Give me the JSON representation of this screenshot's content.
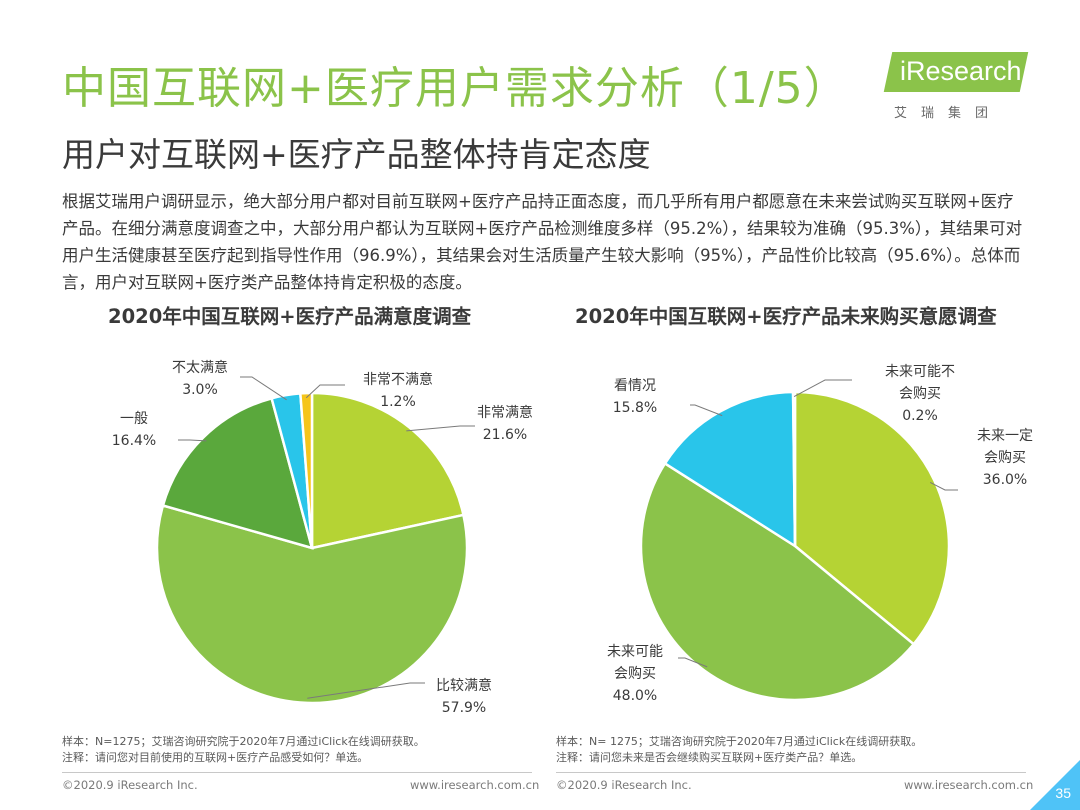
{
  "header": {
    "title": "中国互联网+医疗用户需求分析（1/5）",
    "subtitle": "用户对互联网+医疗产品整体持肯定态度",
    "logo_text": "iResearch",
    "logo_subtext": "艾瑞集团"
  },
  "description": "根据艾瑞用户调研显示，绝大部分用户都对目前互联网+医疗产品持正面态度，而几乎所有用户都愿意在未来尝试购买互联网+医疗产品。在细分满意度调查之中，大部分用户都认为互联网+医疗产品检测维度多样（95.2%），结果较为准确（95.3%），其结果可对用户生活健康甚至医疗起到指导性作用（96.9%），其结果会对生活质量产生较大影响（95%），产品性价比较高（95.6%）。总体而言，用户对互联网+医疗类产品整体持肯定积极的态度。",
  "chart_data": [
    {
      "type": "pie",
      "title": "2020年中国互联网+医疗产品满意度调查",
      "slices": [
        {
          "label": "非常满意",
          "value": 21.6,
          "display": "21.6%",
          "color": "#b5d334"
        },
        {
          "label": "比较满意",
          "value": 57.9,
          "display": "57.9%",
          "color": "#8bc34a"
        },
        {
          "label": "一般",
          "value": 16.4,
          "display": "16.4%",
          "color": "#5aa83c"
        },
        {
          "label": "不太满意",
          "value": 3.0,
          "display": "3.0%",
          "color": "#29c5ea"
        },
        {
          "label": "非常不满意",
          "value": 1.2,
          "display": "1.2%",
          "color": "#f5c51b"
        }
      ]
    },
    {
      "type": "pie",
      "title": "2020年中国互联网+医疗产品未来购买意愿调查",
      "slices": [
        {
          "label": "未来一定会购买",
          "value": 36.0,
          "display": "36.0%",
          "color": "#b5d334"
        },
        {
          "label": "未来可能会购买",
          "value": 48.0,
          "display": "48.0%",
          "color": "#8bc34a"
        },
        {
          "label": "看情况",
          "value": 15.8,
          "display": "15.8%",
          "color": "#29c5ea"
        },
        {
          "label": "未来可能不会购买",
          "value": 0.2,
          "display": "0.2%",
          "color": "#f5c51b"
        }
      ]
    }
  ],
  "notes": {
    "left": {
      "sample": "样本：N=1275；艾瑞咨询研究院于2020年7月通过iClick在线调研获取。",
      "remark": "注释：请问您对目前使用的互联网+医疗产品感受如何？单选。"
    },
    "right": {
      "sample": "样本：N= 1275；艾瑞咨询研究院于2020年7月通过iClick在线调研获取。",
      "remark": "注释：请问您未来是否会继续购买互联网+医疗类产品？单选。"
    }
  },
  "footer": {
    "copyright": "©2020.9 iResearch Inc.",
    "url": "www.iresearch.com.cn",
    "page_number": "35"
  },
  "colors": {
    "accent": "#8bc34a",
    "corner": "#4fc3f7"
  }
}
